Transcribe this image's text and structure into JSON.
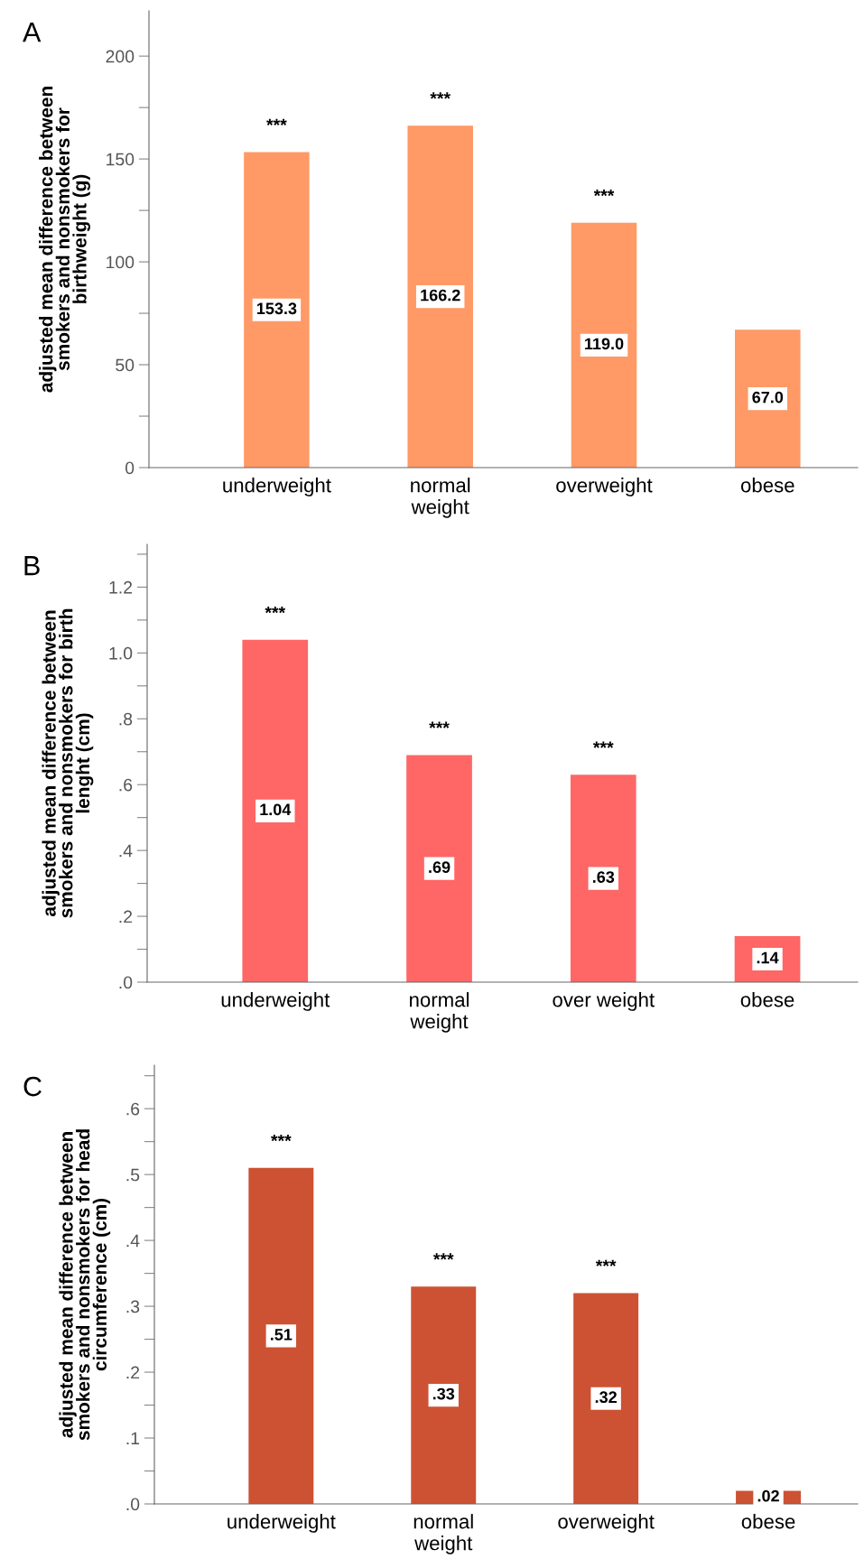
{
  "chart_data": [
    {
      "type": "bar",
      "title": "A",
      "ylabel": "adjusted mean difference between\nsmokers and nonsmokers for\nbirthweight (g)",
      "categories": [
        "underweight",
        "normal\nweight",
        "overweight",
        "obese"
      ],
      "values": [
        153.3,
        166.2,
        119.0,
        67.0
      ],
      "value_labels": [
        "153.3",
        "166.2",
        "119.0",
        "67.0"
      ],
      "color": "#ff9966",
      "ylim": [
        0,
        222
      ],
      "yticks": [
        0,
        {
          "value": 25,
          "label": null
        },
        50,
        {
          "value": 75,
          "label": null
        },
        100,
        {
          "value": 125,
          "label": null
        },
        150,
        {
          "value": 175,
          "label": null
        },
        200
      ],
      "grid": false,
      "annotations": [
        {
          "text": "***",
          "x": "underweight",
          "y": 153.3
        },
        {
          "text": "***",
          "x": "normal\nweight",
          "y": 166.2
        },
        {
          "text": "***",
          "x": "overweight",
          "y": 119.0
        }
      ]
    },
    {
      "type": "bar",
      "title": "B",
      "ylabel": "adjusted mean difference between\nsmokers and nonsmokers for birth\nlenght (cm)",
      "categories": [
        "underweight",
        "normal\nweight",
        "over weight",
        "obese"
      ],
      "values": [
        1.04,
        0.69,
        0.63,
        0.14
      ],
      "value_labels": [
        "1.04",
        ".69",
        ".63",
        ".14"
      ],
      "color": "#ff6666",
      "ylim": [
        0,
        1.33
      ],
      "yticks": [
        {
          "value": 0,
          "label": ".0"
        },
        {
          "value": 0.1,
          "label": null
        },
        {
          "value": 0.2,
          "label": ".2"
        },
        {
          "value": 0.3,
          "label": null
        },
        {
          "value": 0.4,
          "label": ".4"
        },
        {
          "value": 0.5,
          "label": null
        },
        {
          "value": 0.6,
          "label": ".6"
        },
        {
          "value": 0.7,
          "label": null
        },
        {
          "value": 0.8,
          "label": ".8"
        },
        {
          "value": 0.9,
          "label": null
        },
        {
          "value": 1.0,
          "label": "1.0"
        },
        {
          "value": 1.1,
          "label": null
        },
        {
          "value": 1.2,
          "label": "1.2"
        },
        {
          "value": 1.3,
          "label": null
        }
      ],
      "grid": false,
      "annotations": [
        {
          "text": "***",
          "x": "underweight",
          "y": 1.04
        },
        {
          "text": "***",
          "x": "normal\nweight",
          "y": 0.69
        },
        {
          "text": "***",
          "x": "over weight",
          "y": 0.63
        }
      ]
    },
    {
      "type": "bar",
      "title": "C",
      "ylabel": "adjusted mean difference between\nsmokers and nonsmokers for head\ncircumference (cm)",
      "categories": [
        "underweight",
        "normal\nweight",
        "overweight",
        "obese"
      ],
      "values": [
        0.51,
        0.33,
        0.32,
        0.02
      ],
      "value_labels": [
        ".51",
        ".33",
        ".32",
        ".02"
      ],
      "color": "#cc5233",
      "ylim": [
        0,
        0.666
      ],
      "yticks": [
        {
          "value": 0,
          "label": ".0"
        },
        {
          "value": 0.05,
          "label": null
        },
        {
          "value": 0.1,
          "label": ".1"
        },
        {
          "value": 0.15,
          "label": null
        },
        {
          "value": 0.2,
          "label": ".2"
        },
        {
          "value": 0.25,
          "label": null
        },
        {
          "value": 0.3,
          "label": ".3"
        },
        {
          "value": 0.35,
          "label": null
        },
        {
          "value": 0.4,
          "label": ".4"
        },
        {
          "value": 0.45,
          "label": null
        },
        {
          "value": 0.5,
          "label": ".5"
        },
        {
          "value": 0.55,
          "label": null
        },
        {
          "value": 0.6,
          "label": ".6"
        },
        {
          "value": 0.65,
          "label": null
        }
      ],
      "grid": false,
      "annotations": [
        {
          "text": "***",
          "x": "underweight",
          "y": 0.51
        },
        {
          "text": "***",
          "x": "normal\nweight",
          "y": 0.33
        },
        {
          "text": "***",
          "x": "overweight",
          "y": 0.32
        }
      ]
    }
  ]
}
